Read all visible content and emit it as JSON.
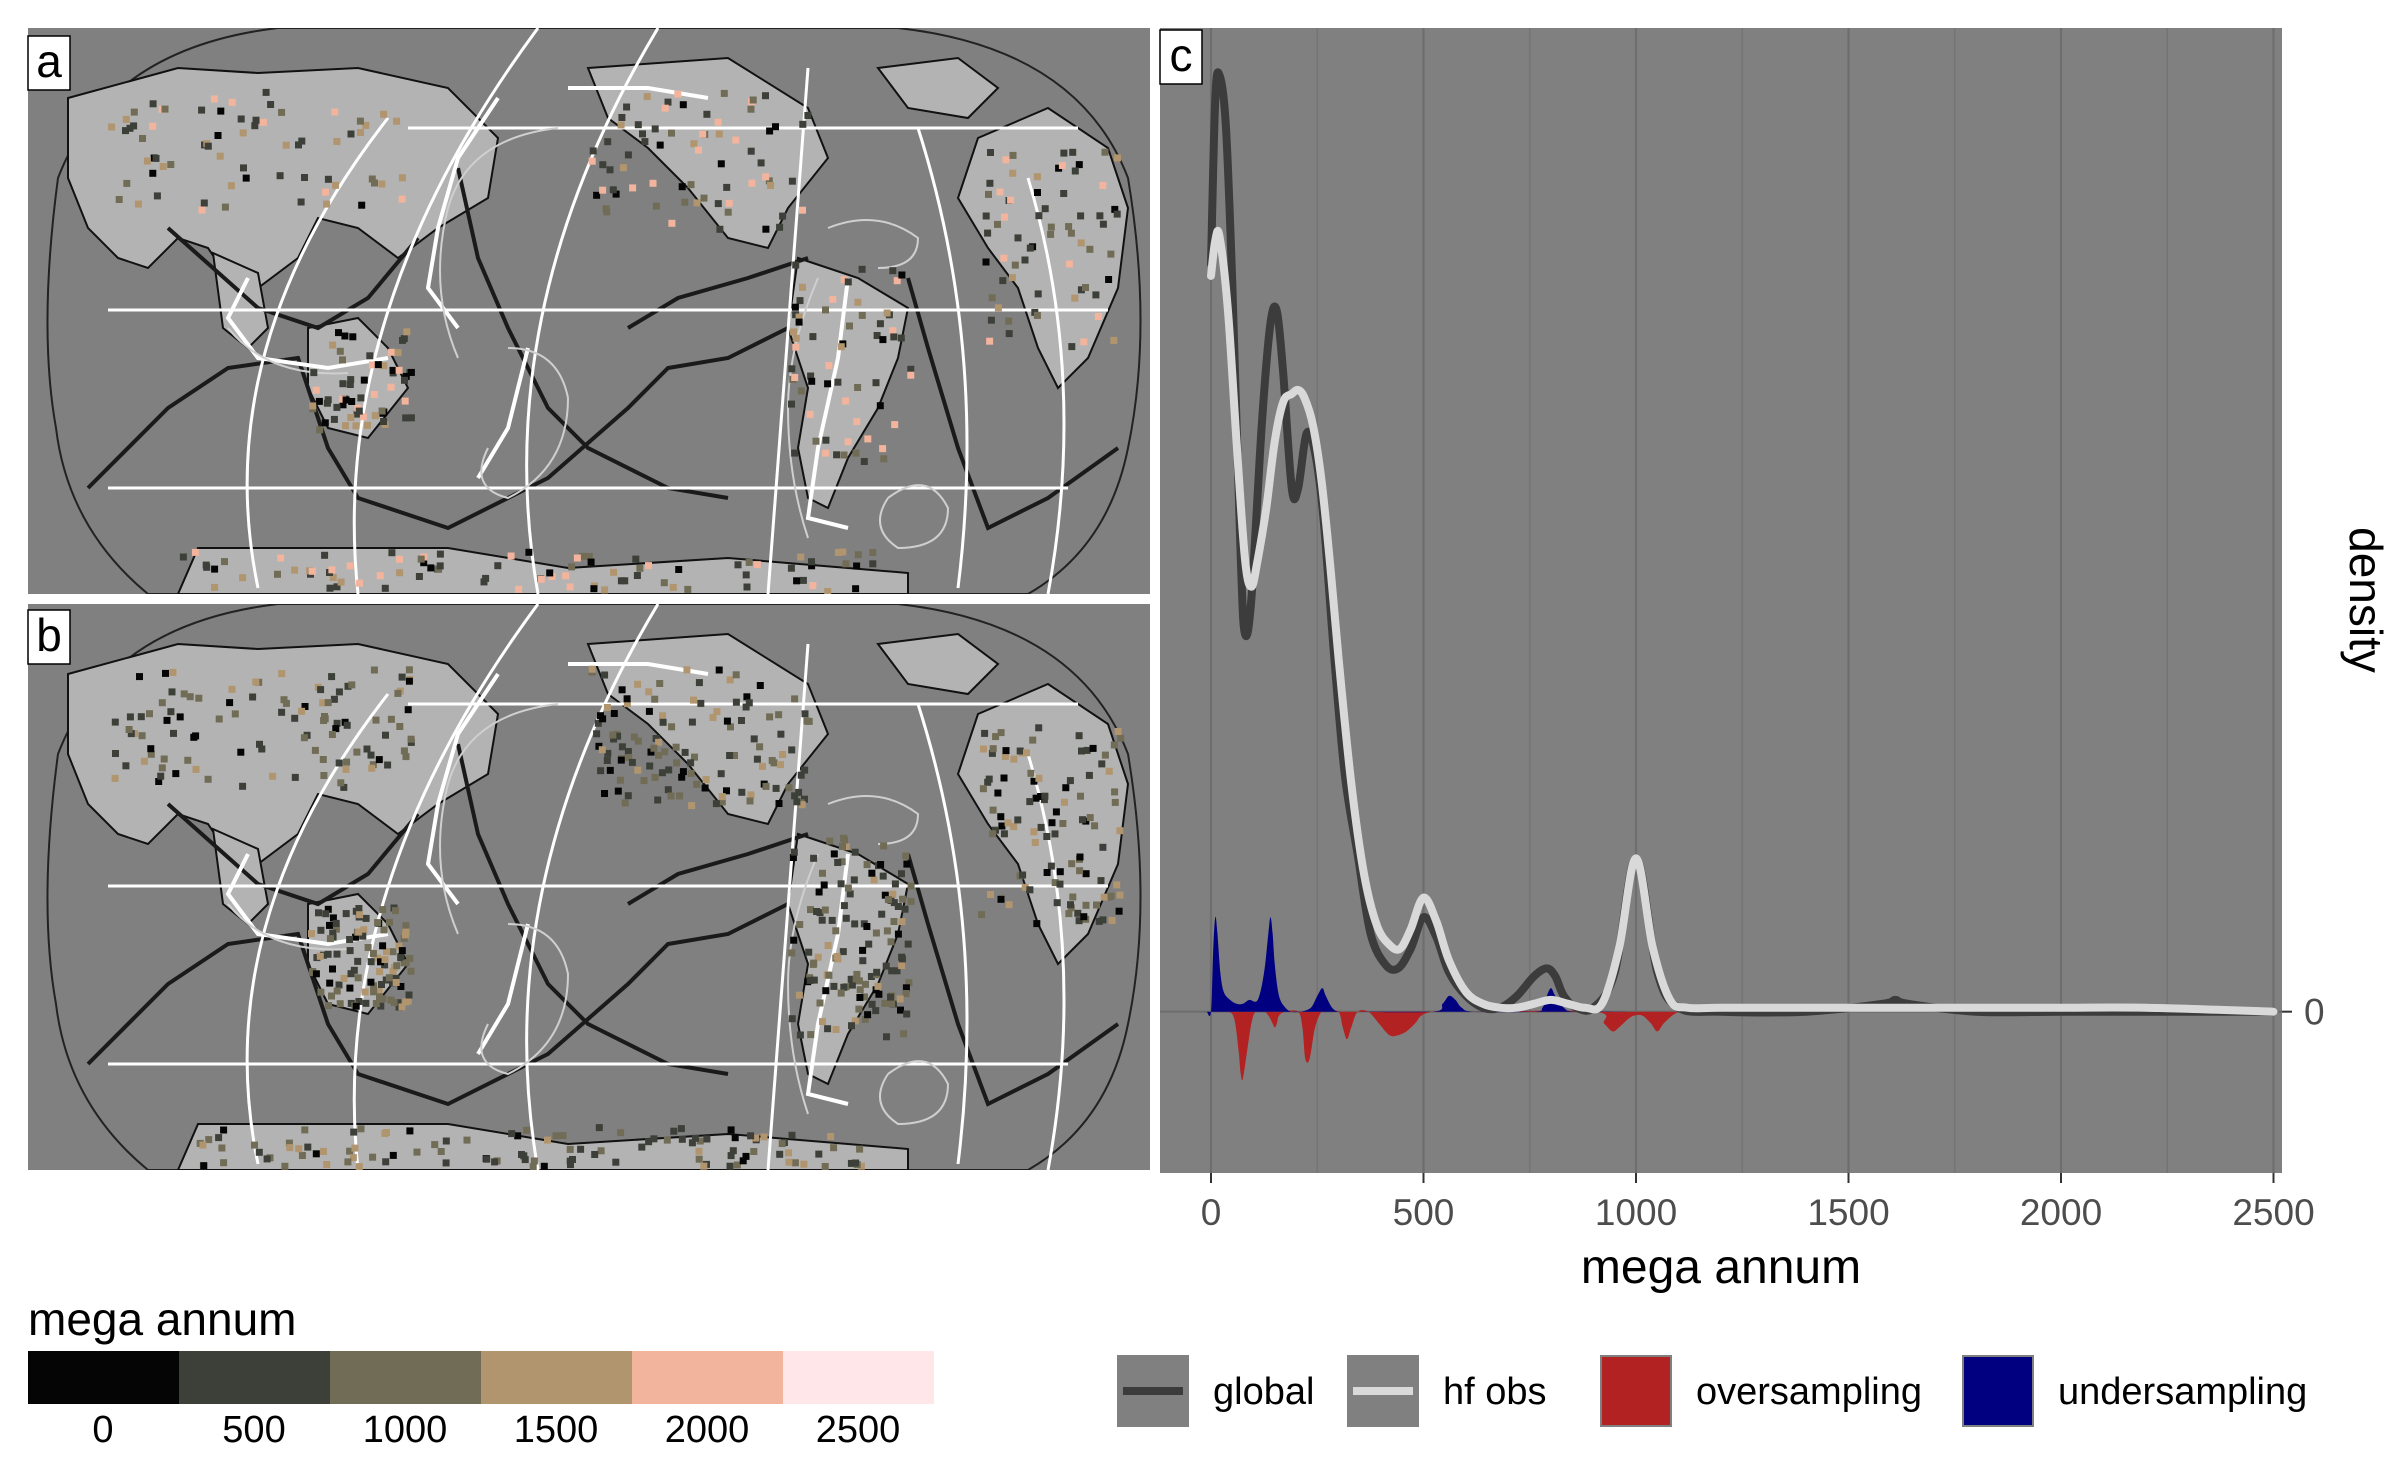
{
  "panels": {
    "a": {
      "label": "a"
    },
    "b": {
      "label": "b"
    },
    "c": {
      "label": "c"
    }
  },
  "colorbar": {
    "title": "mega annum",
    "ticks": [
      "0",
      "500",
      "1000",
      "1500",
      "2000",
      "2500"
    ],
    "colors": [
      "#050505",
      "#3d4039",
      "#716c55",
      "#b0956f",
      "#f2b49c",
      "#ffe6e8"
    ]
  },
  "map_colors": {
    "ocean": "#808080",
    "land": "#b3b3b3",
    "outline": "#111111",
    "plate_boundary": "#1a1a1a",
    "graticule": "#ffffff",
    "contour": "#d9d9d9"
  },
  "chart_data": {
    "type": "area",
    "xlabel": "mega annum",
    "ylabel": "density",
    "xlim": [
      -120,
      2520
    ],
    "ylim": [
      -0.041,
      0.25
    ],
    "x_ticks": [
      0,
      500,
      1000,
      1500,
      2000,
      2500
    ],
    "x_tick_labels": [
      "0",
      "500",
      "1000",
      "1500",
      "2000",
      "2500"
    ],
    "y_ticks": [
      0
    ],
    "y_tick_labels": [
      "0"
    ],
    "grid": true,
    "background": "#808080",
    "series": [
      {
        "name": "global",
        "kind": "line",
        "color": "#3c3c3c",
        "x": [
          0,
          10,
          20,
          35,
          50,
          70,
          80,
          95,
          120,
          140,
          155,
          170,
          190,
          205,
          225,
          245,
          265,
          290,
          315,
          345,
          375,
          410,
          440,
          470,
          500,
          530,
          560,
          600,
          640,
          680,
          720,
          760,
          790,
          810,
          830,
          860,
          900,
          950,
          1000,
          1050,
          1100,
          1200,
          1400,
          1580,
          1610,
          1640,
          1800,
          2000,
          2200,
          2500
        ],
        "values": [
          0.19,
          0.232,
          0.238,
          0.225,
          0.185,
          0.115,
          0.096,
          0.105,
          0.15,
          0.175,
          0.178,
          0.162,
          0.133,
          0.133,
          0.147,
          0.142,
          0.125,
          0.09,
          0.06,
          0.04,
          0.02,
          0.012,
          0.011,
          0.016,
          0.024,
          0.019,
          0.01,
          0.004,
          0.001,
          0.001,
          0.004,
          0.009,
          0.011,
          0.009,
          0.004,
          0.001,
          0.001,
          0.01,
          0.039,
          0.01,
          0.001,
          0.0,
          0.0,
          0.002,
          0.003,
          0.002,
          0.0,
          0.0,
          0.0,
          0.0
        ]
      },
      {
        "name": "hf obs",
        "kind": "line",
        "color": "#d9d9d9",
        "x": [
          0,
          10,
          20,
          40,
          60,
          80,
          95,
          110,
          130,
          150,
          170,
          190,
          205,
          220,
          240,
          260,
          280,
          300,
          330,
          360,
          390,
          420,
          445,
          470,
          500,
          530,
          560,
          600,
          640,
          680,
          720,
          760,
          800,
          840,
          880,
          920,
          960,
          1000,
          1040,
          1080,
          1120,
          1200,
          1400,
          1600,
          1800,
          2000,
          2200,
          2500
        ],
        "values": [
          0.187,
          0.196,
          0.197,
          0.178,
          0.145,
          0.115,
          0.108,
          0.115,
          0.128,
          0.145,
          0.155,
          0.157,
          0.158,
          0.156,
          0.149,
          0.135,
          0.114,
          0.09,
          0.058,
          0.035,
          0.022,
          0.017,
          0.016,
          0.021,
          0.029,
          0.023,
          0.013,
          0.005,
          0.002,
          0.001,
          0.001,
          0.002,
          0.003,
          0.002,
          0.001,
          0.002,
          0.016,
          0.039,
          0.016,
          0.003,
          0.001,
          0.001,
          0.001,
          0.001,
          0.001,
          0.001,
          0.001,
          0.0
        ]
      },
      {
        "name": "oversampling",
        "kind": "area",
        "color": "#b22222",
        "x": [
          0,
          40,
          55,
          65,
          70,
          75,
          85,
          95,
          105,
          125,
          135,
          145,
          150,
          155,
          160,
          175,
          205,
          215,
          222,
          232,
          245,
          260,
          275,
          300,
          310,
          320,
          330,
          345,
          370,
          395,
          420,
          440,
          460,
          480,
          495,
          520,
          550,
          600,
          900,
          925,
          945,
          960,
          980,
          995,
          1015,
          1035,
          1050,
          1065,
          1085,
          1100
        ],
        "values": [
          0,
          0,
          -0.002,
          -0.01,
          -0.016,
          -0.017,
          -0.01,
          -0.003,
          0,
          0,
          -0.001,
          -0.003,
          -0.004,
          -0.003,
          -0.001,
          0,
          0,
          -0.004,
          -0.012,
          -0.012,
          -0.004,
          0,
          0,
          0,
          -0.004,
          -0.007,
          -0.004,
          0,
          0,
          -0.003,
          -0.006,
          -0.006,
          -0.005,
          -0.003,
          -0.001,
          0,
          0,
          0,
          0,
          -0.003,
          -0.005,
          -0.004,
          -0.002,
          -0.001,
          -0.001,
          -0.003,
          -0.005,
          -0.003,
          -0.001,
          0
        ]
      },
      {
        "name": "undersampling",
        "kind": "area",
        "color": "#000080",
        "x": [
          -10,
          0,
          5,
          10,
          15,
          22,
          30,
          45,
          60,
          75,
          90,
          110,
          125,
          135,
          140,
          145,
          150,
          160,
          175,
          190,
          210,
          235,
          250,
          262,
          270,
          285,
          300,
          320,
          520,
          545,
          560,
          575,
          590,
          620,
          760,
          780,
          790,
          800,
          810,
          830,
          860,
          1000
        ],
        "values": [
          0,
          0,
          0.015,
          0.024,
          0.02,
          0.01,
          0.005,
          0.003,
          0.002,
          0.002,
          0.003,
          0.003,
          0.01,
          0.02,
          0.024,
          0.02,
          0.012,
          0.004,
          0.001,
          0,
          0,
          0.001,
          0.004,
          0.006,
          0.004,
          0.001,
          0,
          0,
          0,
          0.002,
          0.004,
          0.003,
          0.001,
          0,
          0,
          0.001,
          0.004,
          0.006,
          0.004,
          0.001,
          0,
          0
        ]
      }
    ]
  },
  "legend": {
    "items": [
      {
        "label": "global",
        "kind": "line",
        "color": "#3c3c3c"
      },
      {
        "label": "hf obs",
        "kind": "line",
        "color": "#d9d9d9"
      },
      {
        "label": "oversampling",
        "kind": "fill",
        "color": "#b22222"
      },
      {
        "label": "undersampling",
        "kind": "fill",
        "color": "#000080"
      }
    ]
  }
}
